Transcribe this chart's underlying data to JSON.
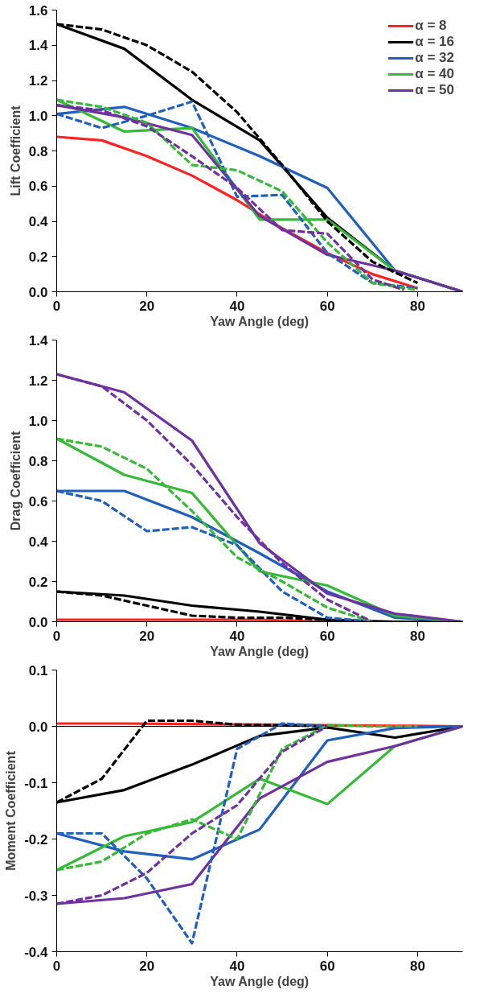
{
  "chart_data": [
    {
      "type": "line",
      "xlabel": "Yaw Angle (deg)",
      "ylabel": "Lift Coefficient",
      "xlim": [
        0,
        90
      ],
      "xticks": [
        0,
        20,
        40,
        60,
        80
      ],
      "ylim": [
        0,
        1.6
      ],
      "yticks": [
        {
          "value": 0,
          "label": "0.0"
        },
        {
          "value": 0.2,
          "label": "0.2"
        },
        {
          "value": 0.4,
          "label": "0.4"
        },
        {
          "value": 0.6,
          "label": "0.6"
        },
        {
          "value": 0.8,
          "label": "0.8"
        },
        {
          "value": 1,
          "label": "1.0"
        },
        {
          "value": 1.2,
          "label": "1.2"
        },
        {
          "value": 1.4,
          "label": "1.4"
        },
        {
          "value": 1.6,
          "label": "1.6"
        }
      ],
      "grid": false,
      "legend": "top right",
      "marker": "none",
      "series": [
        {
          "color": "#000000",
          "line_style": "dashed",
          "x": [
            0,
            10,
            20,
            30,
            40,
            50,
            60,
            70,
            80
          ],
          "values": [
            1.52,
            1.49,
            1.4,
            1.25,
            1.02,
            0.72,
            0.4,
            0.17,
            0.05
          ]
        },
        {
          "color": "#1f5fbf",
          "line_style": "dashed",
          "x": [
            0,
            10,
            20,
            30,
            40,
            50,
            60,
            70,
            80
          ],
          "values": [
            1.01,
            0.93,
            1.0,
            1.08,
            0.54,
            0.55,
            0.22,
            0.05,
            0.02
          ]
        },
        {
          "color": "#33bb33",
          "line_style": "dashed",
          "x": [
            0,
            10,
            20,
            30,
            40,
            50,
            60,
            70,
            80
          ],
          "values": [
            1.09,
            1.05,
            0.96,
            0.72,
            0.69,
            0.57,
            0.28,
            0.05,
            0.01
          ]
        },
        {
          "color": "#7030a0",
          "line_style": "dashed",
          "x": [
            0,
            10,
            20,
            30,
            40,
            50,
            60,
            70,
            77
          ],
          "values": [
            1.06,
            1.03,
            0.94,
            0.77,
            0.59,
            0.35,
            0.33,
            0.07,
            0.01
          ]
        },
        {
          "name": "α = 8",
          "color": "#ff2020",
          "line_style": "solid",
          "x": [
            0,
            10,
            20,
            30,
            40,
            50,
            60,
            70,
            80
          ],
          "values": [
            0.88,
            0.86,
            0.77,
            0.66,
            0.52,
            0.36,
            0.22,
            0.1,
            0.02
          ]
        },
        {
          "name": "α = 16",
          "color": "#000000",
          "line_style": "solid",
          "x": [
            0,
            15,
            30,
            45,
            60,
            75,
            90
          ],
          "values": [
            1.52,
            1.38,
            1.09,
            0.86,
            0.42,
            0.12,
            0
          ]
        },
        {
          "name": "α = 32",
          "color": "#1f5fbf",
          "line_style": "solid",
          "x": [
            0,
            15,
            30,
            45,
            60,
            75,
            90
          ],
          "values": [
            1.01,
            1.05,
            0.93,
            0.77,
            0.59,
            0.12,
            0
          ]
        },
        {
          "name": "α = 40",
          "color": "#33bb33",
          "line_style": "solid",
          "x": [
            0,
            15,
            30,
            45,
            60,
            75,
            90
          ],
          "values": [
            1.09,
            0.91,
            0.93,
            0.41,
            0.41,
            0.12,
            0
          ]
        },
        {
          "name": "α = 50",
          "color": "#7030a0",
          "line_style": "solid",
          "x": [
            0,
            15,
            30,
            45,
            60,
            75,
            90
          ],
          "values": [
            1.06,
            0.99,
            0.89,
            0.43,
            0.21,
            0.12,
            0
          ]
        }
      ]
    },
    {
      "type": "line",
      "xlabel": "Yaw Angle (deg)",
      "ylabel": "Drag Coefficient",
      "xlim": [
        0,
        90
      ],
      "xticks": [
        0,
        20,
        40,
        60,
        80
      ],
      "ylim": [
        0,
        1.4
      ],
      "yticks": [
        {
          "value": 0,
          "label": "0.0"
        },
        {
          "value": 0.2,
          "label": "0.2"
        },
        {
          "value": 0.4,
          "label": "0.4"
        },
        {
          "value": 0.6,
          "label": "0.6"
        },
        {
          "value": 0.8,
          "label": "0.8"
        },
        {
          "value": 1,
          "label": "1.0"
        },
        {
          "value": 1.2,
          "label": "1.2"
        },
        {
          "value": 1.4,
          "label": "1.4"
        }
      ],
      "grid": false,
      "marker": "none",
      "series": [
        {
          "color": "#000000",
          "line_style": "dashed",
          "x": [
            0,
            10,
            20,
            30,
            40,
            50,
            60,
            70
          ],
          "values": [
            0.15,
            0.13,
            0.08,
            0.03,
            0.02,
            0.02,
            0.01,
            0
          ]
        },
        {
          "color": "#1f5fbf",
          "line_style": "dashed",
          "x": [
            0,
            10,
            20,
            30,
            40,
            50,
            60,
            70
          ],
          "values": [
            0.65,
            0.6,
            0.45,
            0.47,
            0.38,
            0.15,
            0.02,
            0
          ]
        },
        {
          "color": "#33bb33",
          "line_style": "dashed",
          "x": [
            0,
            10,
            20,
            30,
            40,
            50,
            60,
            70
          ],
          "values": [
            0.91,
            0.87,
            0.76,
            0.55,
            0.32,
            0.2,
            0.07,
            0
          ]
        },
        {
          "color": "#7030a0",
          "line_style": "dashed",
          "x": [
            0,
            10,
            20,
            30,
            40,
            50,
            60,
            70
          ],
          "values": [
            1.23,
            1.17,
            1.0,
            0.78,
            0.52,
            0.29,
            0.11,
            0
          ]
        },
        {
          "color": "#ff2020",
          "line_style": "solid",
          "x": [
            0,
            15,
            30,
            45,
            60,
            75,
            90
          ],
          "values": [
            0.01,
            0.01,
            0.01,
            0.01,
            0,
            0,
            0
          ]
        },
        {
          "color": "#000000",
          "line_style": "solid",
          "x": [
            0,
            15,
            30,
            45,
            60,
            75,
            90
          ],
          "values": [
            0.15,
            0.13,
            0.08,
            0.05,
            0.01,
            0,
            0
          ]
        },
        {
          "color": "#1f5fbf",
          "line_style": "solid",
          "x": [
            0,
            15,
            30,
            45,
            60,
            75,
            90
          ],
          "values": [
            0.65,
            0.65,
            0.52,
            0.34,
            0.15,
            0.02,
            0
          ]
        },
        {
          "color": "#33bb33",
          "line_style": "solid",
          "x": [
            0,
            15,
            30,
            45,
            60,
            75,
            90
          ],
          "values": [
            0.91,
            0.73,
            0.64,
            0.25,
            0.18,
            0.03,
            0
          ]
        },
        {
          "color": "#7030a0",
          "line_style": "solid",
          "x": [
            0,
            15,
            30,
            45,
            60,
            75,
            90
          ],
          "values": [
            1.23,
            1.14,
            0.9,
            0.39,
            0.14,
            0.04,
            0
          ]
        }
      ]
    },
    {
      "type": "line",
      "xlabel": "Yaw Angle (deg)",
      "ylabel": "Moment Coefficient",
      "xlim": [
        0,
        90
      ],
      "xticks": [
        0,
        20,
        40,
        60,
        80
      ],
      "ylim": [
        -0.4,
        0.1
      ],
      "yticks": [
        -0.4,
        -0.3,
        -0.2,
        -0.1,
        {
          "value": 0,
          "label": "0.0"
        },
        0.1
      ],
      "grid": false,
      "marker": "none",
      "ref_lines": [
        {
          "axis": "y",
          "value": 0,
          "color": "#000000"
        }
      ],
      "series": [
        {
          "color": "#000000",
          "line_style": "dashed",
          "x": [
            0,
            10,
            20,
            30,
            40,
            50,
            60
          ],
          "values": [
            -0.135,
            -0.093,
            0.01,
            0.01,
            0.003,
            0.002,
            0
          ]
        },
        {
          "color": "#1f5fbf",
          "line_style": "dashed",
          "x": [
            0,
            10,
            20,
            30,
            40,
            50,
            60
          ],
          "values": [
            -0.19,
            -0.19,
            -0.27,
            -0.385,
            -0.04,
            0.005,
            0
          ]
        },
        {
          "color": "#33bb33",
          "line_style": "dashed",
          "x": [
            0,
            10,
            20,
            30,
            40,
            50,
            60,
            70,
            80
          ],
          "values": [
            -0.255,
            -0.24,
            -0.19,
            -0.165,
            -0.2,
            -0.04,
            0.002,
            0,
            0
          ]
        },
        {
          "color": "#7030a0",
          "line_style": "dashed",
          "x": [
            0,
            10,
            20,
            30,
            40,
            50,
            60
          ],
          "values": [
            -0.315,
            -0.3,
            -0.26,
            -0.19,
            -0.14,
            -0.045,
            0
          ]
        },
        {
          "color": "#ff2020",
          "line_style": "solid",
          "x": [
            0,
            15,
            30,
            45,
            60,
            75,
            90
          ],
          "values": [
            0.005,
            0.005,
            0.004,
            0.003,
            0.002,
            0.001,
            0
          ]
        },
        {
          "color": "#000000",
          "line_style": "solid",
          "x": [
            0,
            15,
            30,
            45,
            60,
            75,
            90
          ],
          "values": [
            -0.135,
            -0.113,
            -0.068,
            -0.017,
            -0.002,
            -0.02,
            0
          ]
        },
        {
          "color": "#1f5fbf",
          "line_style": "solid",
          "x": [
            0,
            15,
            30,
            45,
            60,
            75,
            90
          ],
          "values": [
            -0.19,
            -0.222,
            -0.236,
            -0.183,
            -0.025,
            -0.003,
            0
          ]
        },
        {
          "color": "#33bb33",
          "line_style": "solid",
          "x": [
            0,
            15,
            30,
            45,
            60,
            75,
            90
          ],
          "values": [
            -0.255,
            -0.195,
            -0.17,
            -0.093,
            -0.138,
            -0.035,
            0
          ]
        },
        {
          "color": "#7030a0",
          "line_style": "solid",
          "x": [
            0,
            15,
            30,
            45,
            60,
            75,
            90
          ],
          "values": [
            -0.315,
            -0.305,
            -0.28,
            -0.128,
            -0.063,
            -0.035,
            0
          ]
        }
      ]
    }
  ]
}
